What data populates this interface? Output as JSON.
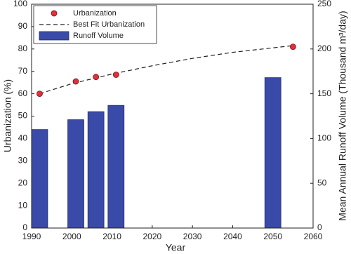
{
  "chart_data": {
    "type": "combo",
    "x_label": "Year",
    "y_label": "Urbanization (%)",
    "y2_label": "Mean Annual Runoff Volume (Thousand m³/day)",
    "xlim": [
      1990,
      2060
    ],
    "xticks": [
      1990,
      2000,
      2010,
      2020,
      2030,
      2040,
      2050,
      2060
    ],
    "ylim": [
      0,
      100
    ],
    "yticks": [
      0,
      10,
      20,
      30,
      40,
      50,
      60,
      70,
      80,
      90,
      100
    ],
    "y2lim": [
      0,
      250
    ],
    "y2ticks": [
      0,
      50,
      100,
      150,
      200,
      250
    ],
    "legend": "upper left",
    "series": [
      {
        "name": "Urbanization",
        "kind": "scatter",
        "color": "#e0303a",
        "x": [
          1992,
          2001,
          2006,
          2011,
          2055
        ],
        "values": [
          60,
          65.5,
          67.5,
          68.5,
          81
        ]
      },
      {
        "name": "Best Fit Urbanization",
        "kind": "line",
        "dashed": true,
        "color": "#222222",
        "x": [
          1992,
          2000,
          2010,
          2020,
          2030,
          2040,
          2055
        ],
        "values": [
          60,
          64.5,
          68.8,
          72.5,
          75.8,
          78.5,
          81.5
        ]
      },
      {
        "name": "Runoff Volume",
        "kind": "bar",
        "axis": "y2",
        "color": "#3a4aa8",
        "x": [
          1992,
          2001,
          2006,
          2011,
          2050
        ],
        "values": [
          110,
          121,
          130,
          137,
          168
        ]
      }
    ]
  }
}
